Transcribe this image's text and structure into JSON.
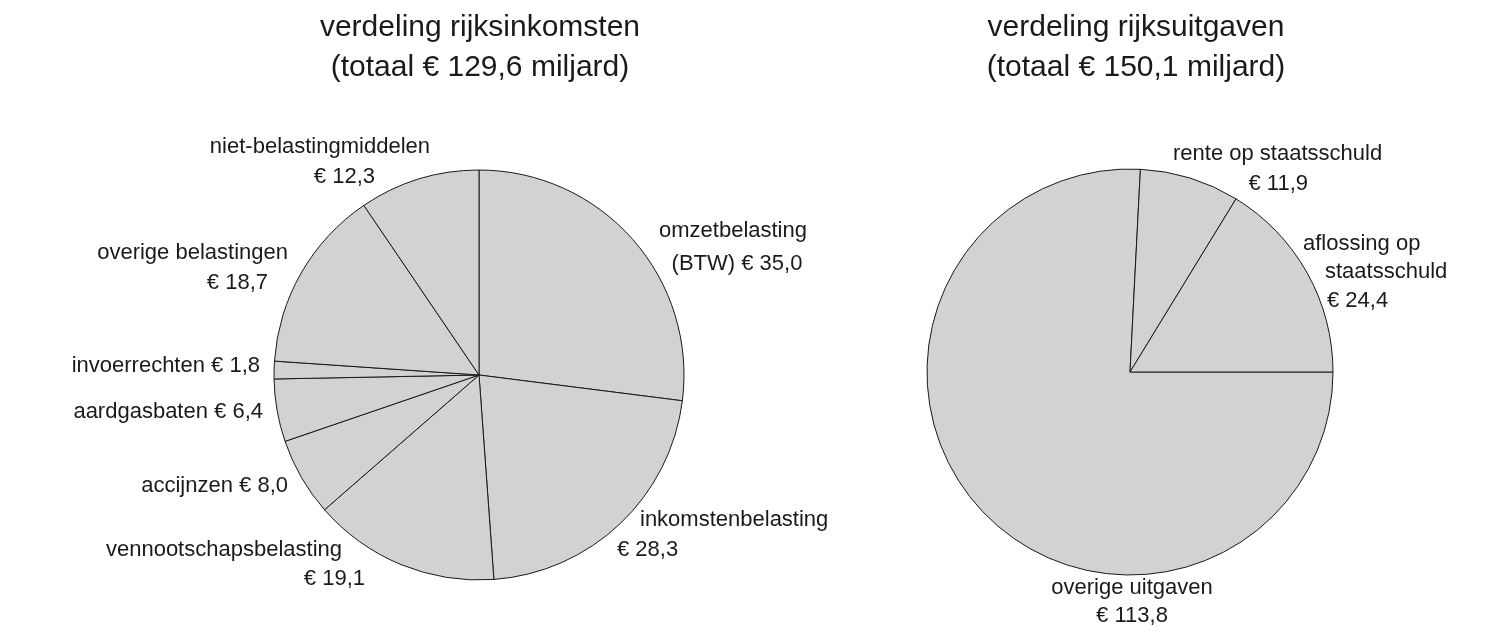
{
  "chart_data": [
    {
      "type": "pie",
      "title": "verdeling rijksinkomsten",
      "subtitle": "(totaal € 129,6 miljard)",
      "categories": [
        "omzetbelasting (BTW)",
        "inkomstenbelasting",
        "vennootschapsbelasting",
        "accijnzen",
        "aardgasbaten",
        "invoerrechten",
        "overige belastingen",
        "niet-belastingmiddelen"
      ],
      "values": [
        35.0,
        28.3,
        19.1,
        8.0,
        6.4,
        1.8,
        18.7,
        12.3
      ],
      "colors": [
        "#d1d2d4",
        "#d1d2d4",
        "#d1d2d4",
        "#d1d2d4",
        "#d1d2d4",
        "#d1d2d4",
        "#d1d2d4",
        "#d1d2d4"
      ],
      "value_labels": [
        "€ 35,0",
        "€ 28,3",
        "€ 19,1",
        "€ 8,0",
        "€ 6,4",
        "€ 1,8",
        "€ 18,7",
        "€ 12,3"
      ]
    },
    {
      "type": "pie",
      "title": "verdeling rijksuitgaven",
      "subtitle": "(totaal € 150,1 miljard)",
      "categories": [
        "overige uitgaven",
        "rente op staatsschuld",
        "aflossing op staatsschuld"
      ],
      "values": [
        113.8,
        11.9,
        24.4
      ],
      "colors": [
        "#d1d2d4",
        "#d1d2d4",
        "#d1d2d4"
      ],
      "value_labels": [
        "€ 113,8",
        "€ 11,9",
        "€ 24,4"
      ]
    }
  ]
}
